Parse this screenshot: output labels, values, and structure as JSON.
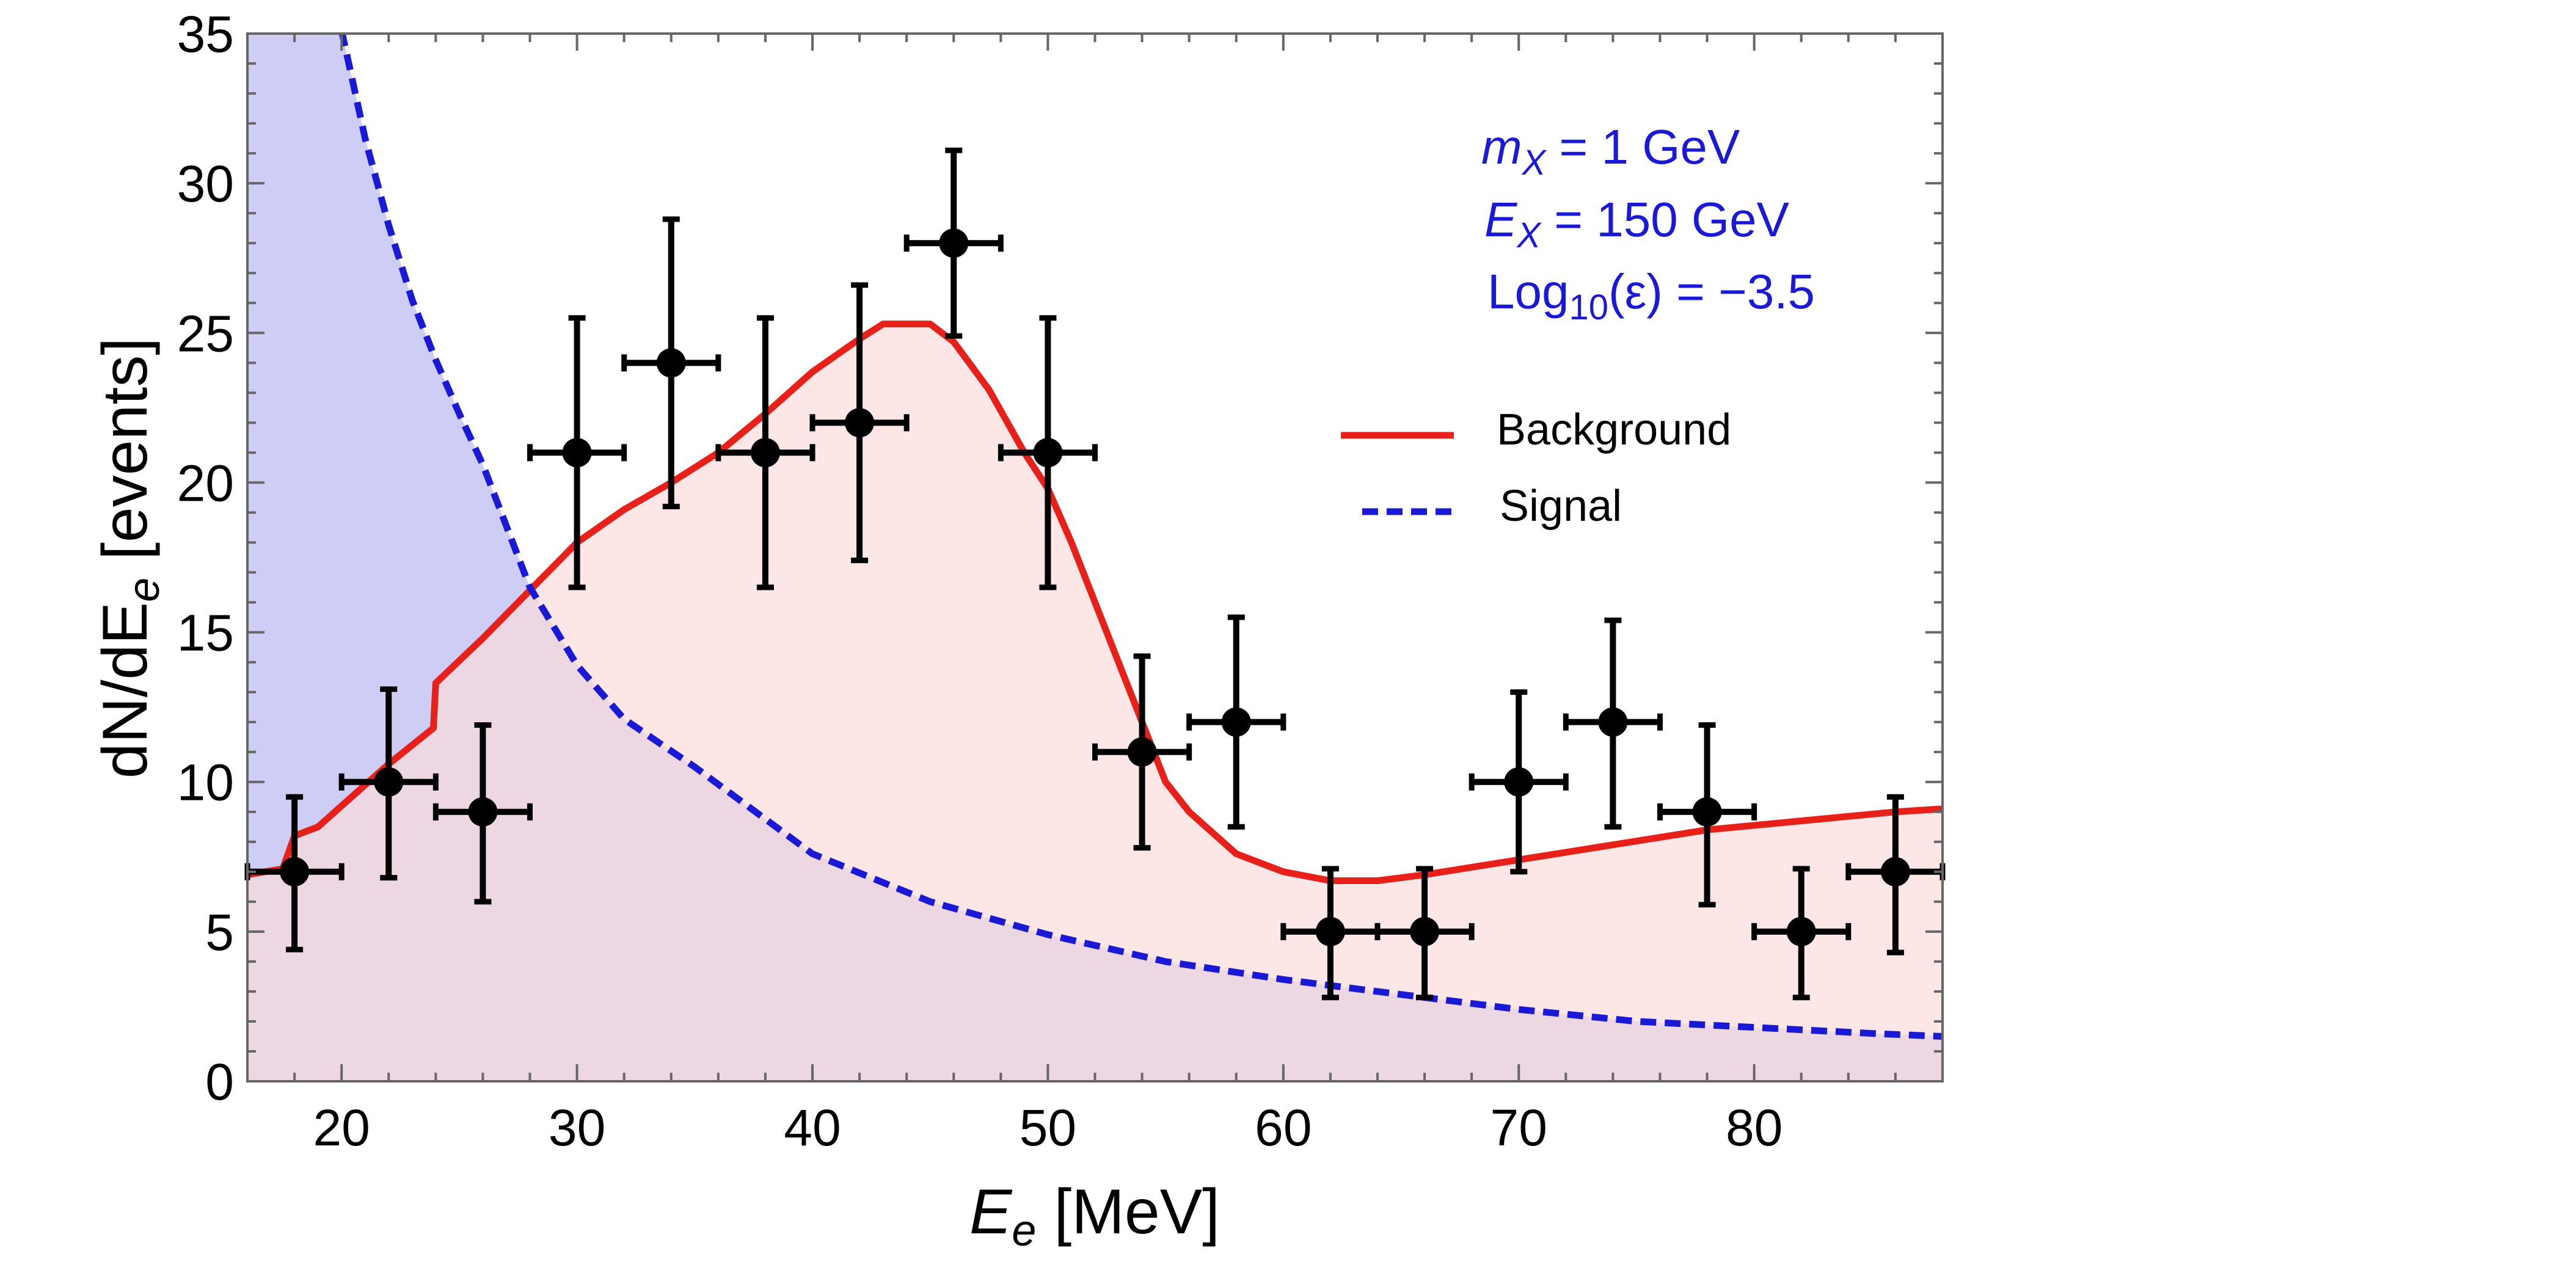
{
  "chart_data": {
    "type": "line",
    "title": "",
    "xlabel": {
      "main": "E",
      "sub": "e",
      "unit": " [MeV]"
    },
    "ylabel": {
      "main": "dN/dE",
      "sub": "e",
      "unit": " [events]"
    },
    "xlim": [
      16,
      88
    ],
    "ylim": [
      0,
      35
    ],
    "x_ticks": [
      20,
      30,
      40,
      50,
      60,
      70,
      80
    ],
    "y_ticks": [
      0,
      5,
      10,
      15,
      20,
      25,
      30,
      35
    ],
    "grid": false,
    "legend_position": "right",
    "annotations": [
      {
        "main": "m",
        "sub": "X",
        "rest": " = 1 GeV"
      },
      {
        "main": "E",
        "sub": "X",
        "rest": " = 150 GeV"
      },
      {
        "main": "Log",
        "sub": "10",
        "rest": "(ε) = −3.5"
      }
    ],
    "series": [
      {
        "name": "Background",
        "style": "solid",
        "color": "#e8201a",
        "fill_color": "#fbdcdc",
        "x": [
          16,
          17.5,
          18,
          19,
          20,
          22,
          23.9,
          24,
          26,
          28,
          30,
          32,
          34,
          36,
          38,
          40,
          42,
          43,
          45,
          46,
          47.5,
          49,
          50,
          51,
          52,
          53,
          54,
          55,
          56,
          58,
          60,
          62,
          64,
          66,
          70,
          74,
          78,
          82,
          86,
          88
        ],
        "y": [
          6.9,
          7.1,
          8.2,
          8.5,
          9.2,
          10.6,
          11.8,
          13.3,
          14.8,
          16.4,
          18.0,
          19.1,
          20.0,
          21.0,
          22.3,
          23.7,
          24.8,
          25.3,
          25.3,
          24.7,
          23.1,
          21.0,
          19.8,
          18.0,
          16.0,
          14.0,
          12.0,
          10.0,
          9.0,
          7.6,
          7.0,
          6.7,
          6.7,
          6.9,
          7.4,
          7.9,
          8.4,
          8.7,
          9.0,
          9.1
        ]
      },
      {
        "name": "Signal",
        "style": "dashed",
        "color": "#1a1ad6",
        "fill_color": "#c4c4f4",
        "x": [
          20,
          21,
          22,
          23,
          24,
          25,
          26,
          28,
          30,
          32,
          35,
          40,
          45,
          50,
          55,
          60,
          65,
          70,
          75,
          80,
          85,
          88
        ],
        "y": [
          35.1,
          31.5,
          28.6,
          26.1,
          24.1,
          22.3,
          20.6,
          16.5,
          13.9,
          12.1,
          10.5,
          7.6,
          6.0,
          4.9,
          4.0,
          3.4,
          2.9,
          2.4,
          2.0,
          1.8,
          1.6,
          1.5
        ]
      }
    ],
    "data_points": {
      "name": "Data",
      "color": "#000000",
      "x_halfwidth": 2,
      "points": [
        {
          "x": 18,
          "y": 7,
          "lo": 4.4,
          "hi": 9.5
        },
        {
          "x": 22,
          "y": 10,
          "lo": 6.8,
          "hi": 13.1
        },
        {
          "x": 26,
          "y": 9,
          "lo": 6.0,
          "hi": 11.9
        },
        {
          "x": 30,
          "y": 21,
          "lo": 16.5,
          "hi": 25.5
        },
        {
          "x": 34,
          "y": 24,
          "lo": 19.2,
          "hi": 28.8
        },
        {
          "x": 38,
          "y": 21,
          "lo": 16.5,
          "hi": 25.5
        },
        {
          "x": 42,
          "y": 22,
          "lo": 17.4,
          "hi": 26.6
        },
        {
          "x": 46,
          "y": 28,
          "lo": 24.9,
          "hi": 31.1
        },
        {
          "x": 50,
          "y": 21,
          "lo": 16.5,
          "hi": 25.5
        },
        {
          "x": 54,
          "y": 11,
          "lo": 7.8,
          "hi": 14.2
        },
        {
          "x": 58,
          "y": 12,
          "lo": 8.5,
          "hi": 15.5
        },
        {
          "x": 62,
          "y": 5,
          "lo": 2.8,
          "hi": 7.1
        },
        {
          "x": 66,
          "y": 5,
          "lo": 2.8,
          "hi": 7.1
        },
        {
          "x": 70,
          "y": 10,
          "lo": 7.0,
          "hi": 13.0
        },
        {
          "x": 74,
          "y": 12,
          "lo": 8.5,
          "hi": 15.4
        },
        {
          "x": 78,
          "y": 9,
          "lo": 5.9,
          "hi": 11.9
        },
        {
          "x": 82,
          "y": 5,
          "lo": 2.8,
          "hi": 7.1
        },
        {
          "x": 86,
          "y": 7,
          "lo": 4.3,
          "hi": 9.5
        }
      ]
    }
  }
}
